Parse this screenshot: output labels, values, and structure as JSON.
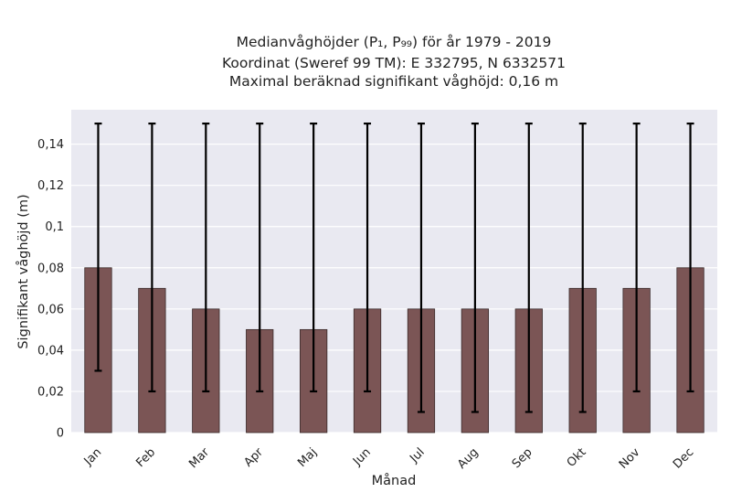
{
  "chart_data": {
    "type": "bar",
    "title_lines": [
      "Medianvåghöjder (P₁, P₉₉) för år 1979 - 2019",
      "Koordinat (Sweref 99 TM): E 332795, N 6332571",
      "Maximal beräknad signifikant våghöjd: 0,16 m"
    ],
    "xlabel": "Månad",
    "ylabel": "Signifikant våghöjd (m)",
    "categories": [
      "Jan",
      "Feb",
      "Mar",
      "Apr",
      "Maj",
      "Jun",
      "Jul",
      "Aug",
      "Sep",
      "Okt",
      "Nov",
      "Dec"
    ],
    "series": [
      {
        "values": [
          0.08,
          0.07,
          0.06,
          0.05,
          0.05,
          0.06,
          0.06,
          0.06,
          0.06,
          0.07,
          0.07,
          0.08
        ],
        "p1": [
          0.03,
          0.02,
          0.02,
          0.02,
          0.02,
          0.02,
          0.01,
          0.01,
          0.01,
          0.01,
          0.02,
          0.02
        ],
        "p99": [
          0.15,
          0.15,
          0.15,
          0.15,
          0.15,
          0.15,
          0.15,
          0.15,
          0.15,
          0.15,
          0.15,
          0.15
        ]
      }
    ],
    "yticks": [
      0,
      0.02,
      0.04,
      0.06,
      0.08,
      0.1,
      0.12,
      0.14
    ],
    "ytick_labels": [
      "0",
      "0,02",
      "0,04",
      "0,06",
      "0,08",
      "0,1",
      "0,12",
      "0,14"
    ],
    "ylim": [
      0,
      0.1567
    ],
    "grid": true,
    "colors": {
      "bar": "#7b5555",
      "bar_edge": "#3a2a2a",
      "error_bar": "#000000",
      "plot_background": "#e9e9f1",
      "grid": "#ffffff"
    }
  }
}
